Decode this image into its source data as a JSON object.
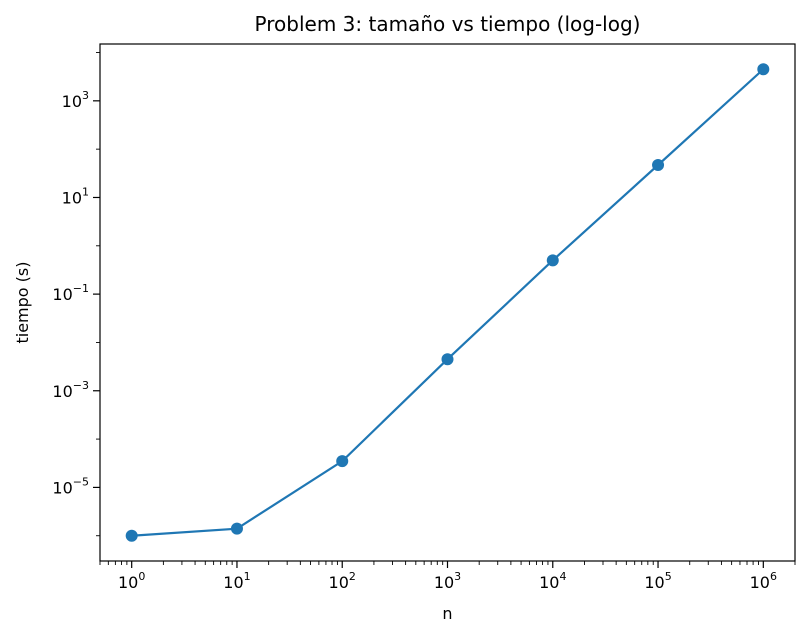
{
  "chart_data": {
    "type": "line",
    "title": "Problem 3: tamaño vs tiempo (log-log)",
    "xlabel": "n",
    "ylabel": "tiempo (s)",
    "xscale": "log",
    "yscale": "log",
    "xlim": [
      0.5,
      2000000
    ],
    "ylim": [
      3e-07,
      15000
    ],
    "grid": false,
    "marker": "circle",
    "color": "#1f77b4",
    "x_ticks": [
      {
        "base": "10",
        "exp": "0"
      },
      {
        "base": "10",
        "exp": "1"
      },
      {
        "base": "10",
        "exp": "2"
      },
      {
        "base": "10",
        "exp": "3"
      },
      {
        "base": "10",
        "exp": "4"
      },
      {
        "base": "10",
        "exp": "5"
      },
      {
        "base": "10",
        "exp": "6"
      }
    ],
    "y_ticks": [
      {
        "base": "10",
        "exp": "−5"
      },
      {
        "base": "10",
        "exp": "−3"
      },
      {
        "base": "10",
        "exp": "−1"
      },
      {
        "base": "10",
        "exp": "1"
      },
      {
        "base": "10",
        "exp": "3"
      }
    ],
    "series": [
      {
        "x": [
          1,
          10,
          100,
          1000,
          10000,
          100000,
          1000000
        ],
        "y": [
          1e-06,
          1.4e-06,
          3.5e-05,
          0.0045,
          0.5,
          47,
          4500
        ]
      }
    ]
  }
}
